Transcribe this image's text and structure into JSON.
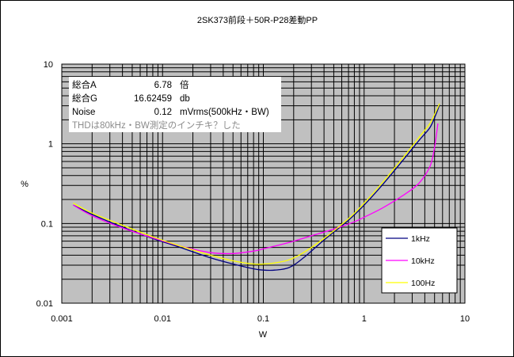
{
  "chart_data": {
    "type": "line",
    "title": "2SK373前段＋50R-P28差動PP",
    "xlabel": "W",
    "ylabel": "%",
    "xscale": "log",
    "yscale": "log",
    "xlim": [
      0.001,
      10
    ],
    "ylim": [
      0.01,
      10
    ],
    "x_ticks": [
      "0.001",
      "0.01",
      "0.1",
      "1",
      "10"
    ],
    "y_ticks": [
      "10",
      "1",
      "0.1",
      "0.01"
    ],
    "grid": true,
    "plot_background": "#c0c0c0",
    "legend_position": "bottom-right",
    "series": [
      {
        "name": "1kHz",
        "color": "#000080",
        "x": [
          0.0013,
          0.002,
          0.004,
          0.008,
          0.015,
          0.03,
          0.05,
          0.08,
          0.1,
          0.13,
          0.18,
          0.25,
          0.4,
          0.7,
          1.0,
          1.5,
          2.5,
          3.5,
          4.5,
          5.2,
          5.6
        ],
        "y": [
          0.17,
          0.13,
          0.09,
          0.065,
          0.05,
          0.037,
          0.031,
          0.027,
          0.026,
          0.026,
          0.028,
          0.037,
          0.062,
          0.11,
          0.17,
          0.3,
          0.65,
          1.1,
          1.6,
          2.4,
          3.1
        ]
      },
      {
        "name": "10kHz",
        "color": "#ff00ff",
        "x": [
          0.0013,
          0.002,
          0.004,
          0.008,
          0.015,
          0.03,
          0.05,
          0.08,
          0.1,
          0.13,
          0.2,
          0.3,
          0.5,
          0.8,
          1.0,
          1.5,
          2.5,
          3.5,
          4.5,
          5.0,
          5.4
        ],
        "y": [
          0.17,
          0.125,
          0.088,
          0.066,
          0.052,
          0.043,
          0.042,
          0.045,
          0.048,
          0.052,
          0.06,
          0.07,
          0.085,
          0.105,
          0.12,
          0.155,
          0.23,
          0.32,
          0.52,
          0.9,
          1.8
        ]
      },
      {
        "name": "100Hz",
        "color": "#ffff00",
        "x": [
          0.0013,
          0.002,
          0.004,
          0.008,
          0.015,
          0.03,
          0.05,
          0.08,
          0.1,
          0.13,
          0.18,
          0.25,
          0.4,
          0.7,
          1.0,
          1.5,
          2.5,
          3.5,
          4.5,
          5.2,
          5.6
        ],
        "y": [
          0.18,
          0.135,
          0.095,
          0.068,
          0.052,
          0.04,
          0.034,
          0.031,
          0.031,
          0.032,
          0.035,
          0.043,
          0.065,
          0.115,
          0.18,
          0.32,
          0.7,
          1.2,
          1.8,
          2.6,
          3.2
        ]
      }
    ],
    "annotations": [
      {
        "label": "総合A",
        "value": "6.78",
        "unit": "倍"
      },
      {
        "label": "総合G",
        "value": "16.62459",
        "unit": "db"
      },
      {
        "label": "Noise",
        "value": "0.12",
        "unit": "mVrms(500kHz・BW)"
      },
      {
        "note": "THDは80kHz・BW測定のインチキ？した"
      }
    ]
  }
}
